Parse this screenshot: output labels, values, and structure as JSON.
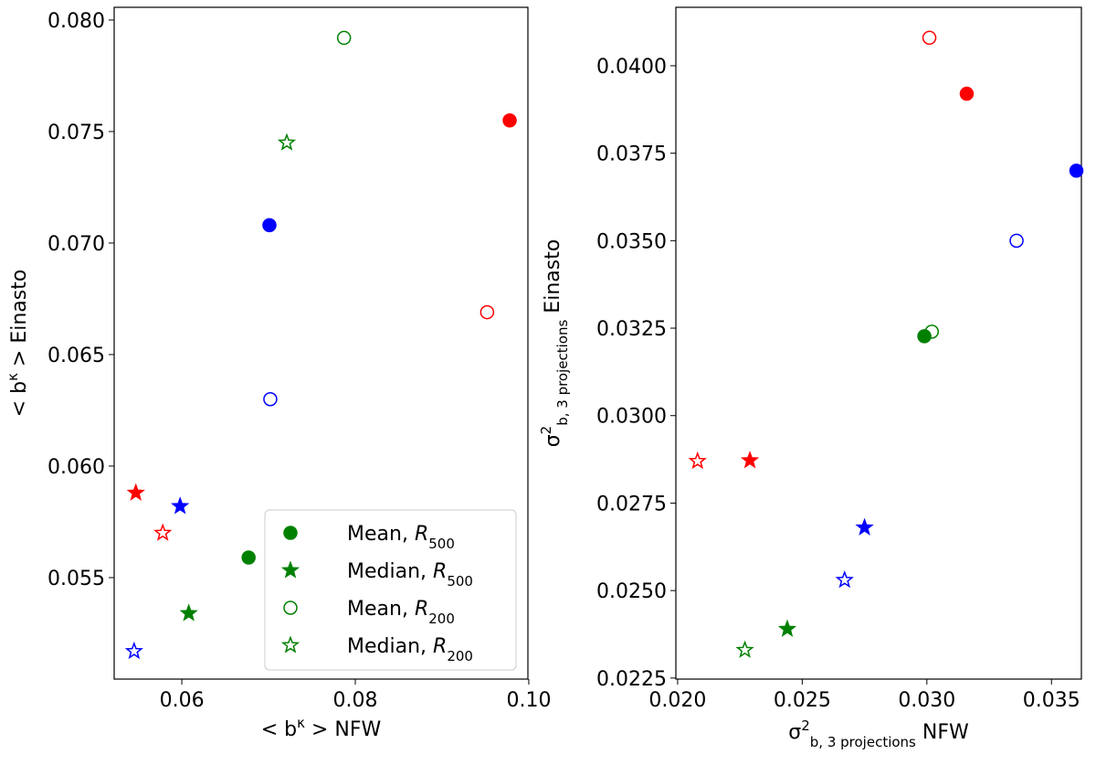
{
  "chart_data": [
    {
      "type": "scatter",
      "xlabel": [
        {
          "text": "< b"
        },
        {
          "text": "κ",
          "script": "sup"
        },
        {
          "text": " >  NFW"
        }
      ],
      "ylabel": [
        {
          "text": "< b"
        },
        {
          "text": "κ",
          "script": "sup"
        },
        {
          "text": " > Einasto"
        }
      ],
      "xlim": [
        0.0522,
        0.0999
      ],
      "ylim": [
        0.05045,
        0.08057
      ],
      "xticks": [
        0.06,
        0.08,
        {
          "value": 0.1,
          "label": "0.10"
        }
      ],
      "yticks": [
        {
          "value": 0.055,
          "label": "0.055"
        },
        {
          "value": 0.06,
          "label": "0.060"
        },
        {
          "value": 0.065,
          "label": "0.065"
        },
        {
          "value": 0.07,
          "label": "0.070"
        },
        {
          "value": 0.075,
          "label": "0.075"
        },
        {
          "value": 0.08,
          "label": "0.080"
        }
      ],
      "legend": "lower right",
      "series": [
        {
          "name": [
            {
              "text": "Mean, "
            },
            {
              "text": "R",
              "italic": true
            },
            {
              "text": "500",
              "script": "sub"
            }
          ],
          "marker": "circle",
          "filled": true,
          "colors": [
            "green",
            "blue",
            "red"
          ],
          "x": [
            0.0677,
            0.0701,
            0.0978
          ],
          "y": [
            0.0559,
            0.0708,
            0.0755
          ]
        },
        {
          "name": [
            {
              "text": "Median, "
            },
            {
              "text": "R",
              "italic": true
            },
            {
              "text": "500",
              "script": "sub"
            }
          ],
          "marker": "star",
          "filled": true,
          "colors": [
            "green",
            "blue",
            "red"
          ],
          "x": [
            0.0608,
            0.0598,
            0.0547
          ],
          "y": [
            0.0534,
            0.0582,
            0.0588
          ]
        },
        {
          "name": [
            {
              "text": "Mean, "
            },
            {
              "text": "R",
              "italic": true
            },
            {
              "text": "200",
              "script": "sub"
            }
          ],
          "marker": "circle",
          "filled": false,
          "colors": [
            "green",
            "blue",
            "red"
          ],
          "x": [
            0.0787,
            0.0702,
            0.0952
          ],
          "y": [
            0.0792,
            0.063,
            0.0669
          ]
        },
        {
          "name": [
            {
              "text": "Median, "
            },
            {
              "text": "R",
              "italic": true
            },
            {
              "text": "200",
              "script": "sub"
            }
          ],
          "marker": "star",
          "filled": false,
          "colors": [
            "green",
            "blue",
            "red"
          ],
          "x": [
            0.0721,
            0.0545,
            0.0578
          ],
          "y": [
            0.0745,
            0.0517,
            0.057
          ]
        }
      ]
    },
    {
      "type": "scatter",
      "xlabel": [
        {
          "text": "σ"
        },
        {
          "text": "2",
          "script": "sup"
        },
        {
          "text": "b, 3 projections",
          "script": "sub"
        },
        {
          "text": " NFW"
        }
      ],
      "ylabel": [
        {
          "text": "σ"
        },
        {
          "text": "2",
          "script": "sup"
        },
        {
          "text": "b, 3 projections",
          "script": "sub"
        },
        {
          "text": " Einasto"
        }
      ],
      "xlim": [
        0.01993,
        0.0362
      ],
      "ylim": [
        0.02247,
        0.04167
      ],
      "xticks": [
        {
          "value": 0.02,
          "label": "0.020"
        },
        0.025,
        {
          "value": 0.03,
          "label": "0.030"
        },
        0.035
      ],
      "yticks": [
        0.0225,
        {
          "value": 0.025,
          "label": "0.0250"
        },
        0.0275,
        {
          "value": 0.03,
          "label": "0.0300"
        },
        0.0325,
        {
          "value": 0.035,
          "label": "0.0350"
        },
        0.0375,
        {
          "value": 0.04,
          "label": "0.0400"
        }
      ],
      "series": [
        {
          "marker": "circle",
          "filled": true,
          "colors": [
            "green",
            "blue",
            "red"
          ],
          "x": [
            0.0299,
            0.036,
            0.0316
          ],
          "y": [
            0.03227,
            0.037,
            0.0392
          ]
        },
        {
          "marker": "star",
          "filled": true,
          "colors": [
            "green",
            "blue",
            "red"
          ],
          "x": [
            0.0244,
            0.0275,
            0.0229
          ],
          "y": [
            0.0239,
            0.0268,
            0.02872
          ]
        },
        {
          "marker": "circle",
          "filled": false,
          "colors": [
            "green",
            "blue",
            "red"
          ],
          "x": [
            0.0302,
            0.0336,
            0.0301
          ],
          "y": [
            0.0324,
            0.035,
            0.0408
          ]
        },
        {
          "marker": "star",
          "filled": false,
          "colors": [
            "green",
            "blue",
            "red"
          ],
          "x": [
            0.0227,
            0.0267,
            0.0208
          ],
          "y": [
            0.0233,
            0.0253,
            0.0287
          ]
        }
      ]
    }
  ]
}
